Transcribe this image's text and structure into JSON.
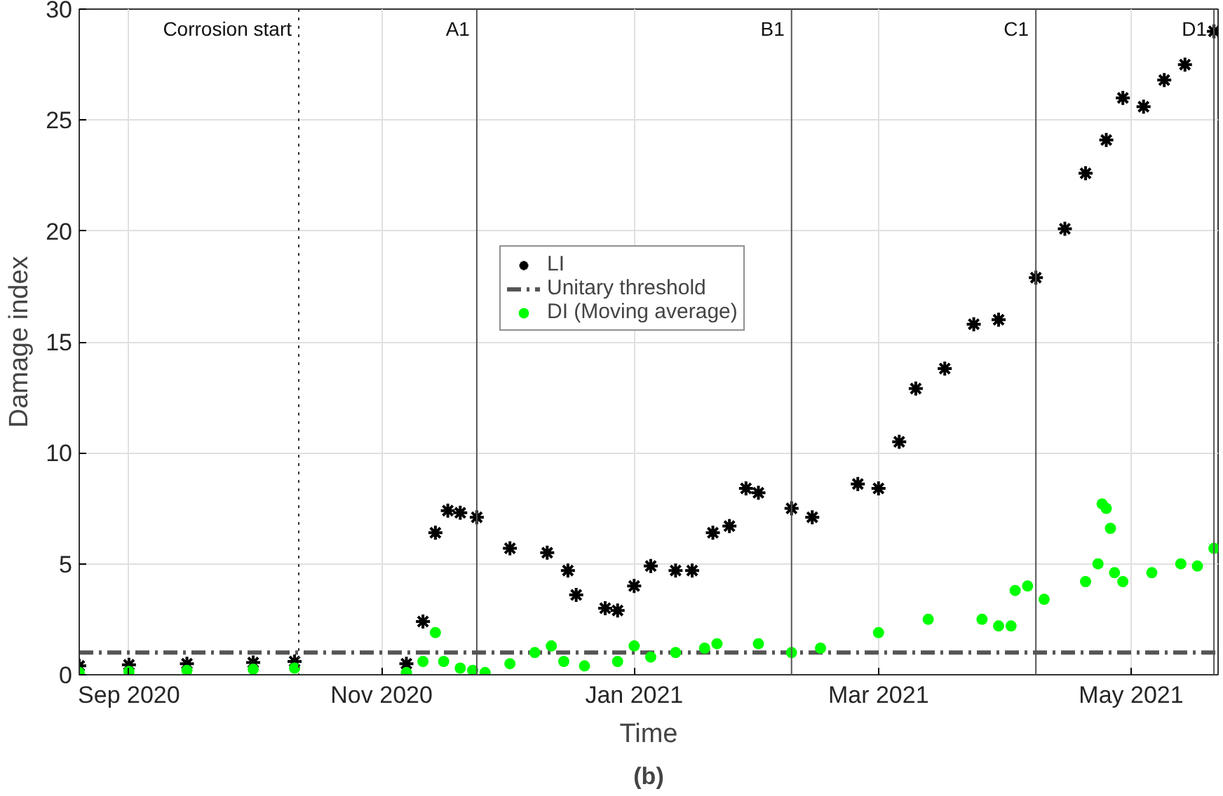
{
  "chart_data": {
    "type": "scatter",
    "xlabel": "Time",
    "ylabel": "Damage index",
    "xlim": [
      "2020-08-20",
      "2021-05-22"
    ],
    "ylim": [
      0,
      30
    ],
    "yticks": [
      0,
      5,
      10,
      15,
      20,
      25,
      30
    ],
    "xticks": [
      {
        "value": "2020-09-01",
        "label": "Sep 2020"
      },
      {
        "value": "2020-11-01",
        "label": "Nov 2020"
      },
      {
        "value": "2021-01-01",
        "label": "Jan 2021"
      },
      {
        "value": "2021-03-01",
        "label": "Mar 2021"
      },
      {
        "value": "2021-05-01",
        "label": "May 2021"
      }
    ],
    "grid": true,
    "legend": "top",
    "series": [
      {
        "name": "LI",
        "color": "#000000",
        "marker": "cross",
        "x": [
          "2020-08-20",
          "2020-09-01",
          "2020-09-15",
          "2020-10-01",
          "2020-10-11",
          "2020-10-20",
          "2020-11-07",
          "2020-11-11",
          "2020-11-14",
          "2020-11-17",
          "2020-11-20",
          "2020-11-24",
          "2020-12-02",
          "2020-12-11",
          "2020-12-16",
          "2020-12-18",
          "2020-12-25",
          "2020-12-28",
          "2021-01-01",
          "2021-01-05",
          "2021-01-11",
          "2021-01-13",
          "2021-01-15",
          "2021-01-20",
          "2021-01-22",
          "2021-01-24",
          "2021-01-28",
          "2021-01-31",
          "2021-02-08",
          "2021-02-13",
          "2021-02-24",
          "2021-03-01",
          "2021-03-06",
          "2021-03-10",
          "2021-03-17",
          "2021-03-24",
          "2021-03-30",
          "2021-04-08",
          "2021-04-15",
          "2021-04-20",
          "2021-04-25",
          "2021-04-29",
          "2021-05-04",
          "2021-05-09",
          "2021-05-14",
          "2021-05-21"
        ],
        "values": [
          0.4,
          0.45,
          0.5,
          0.55,
          0.6,
          null,
          0.5,
          2.4,
          6.4,
          7.4,
          7.3,
          7.1,
          5.7,
          5.5,
          4.7,
          3.6,
          3.0,
          2.9,
          4.0,
          4.9,
          4.7,
          null,
          4.7,
          6.4,
          null,
          6.7,
          8.4,
          8.2,
          7.5,
          7.1,
          8.6,
          8.4,
          10.5,
          12.9,
          13.8,
          15.8,
          16.0,
          17.9,
          20.1,
          22.6,
          24.1,
          26.0,
          25.6,
          26.8,
          27.5,
          29.0
        ]
      },
      {
        "name": "DI (Moving average)",
        "color": "#00ff00",
        "marker": "circle",
        "x": [
          "2020-08-20",
          "2020-09-01",
          "2020-09-15",
          "2020-10-01",
          "2020-10-11",
          "2020-10-20",
          "2020-11-07",
          "2020-11-11",
          "2020-11-14",
          "2020-11-16",
          "2020-11-20",
          "2020-11-23",
          "2020-11-26",
          "2020-12-02",
          "2020-12-08",
          "2020-12-12",
          "2020-12-15",
          "2020-12-20",
          "2020-12-28",
          "2021-01-01",
          "2021-01-05",
          "2021-01-11",
          "2021-01-18",
          "2021-01-21",
          "2021-01-26",
          "2021-01-31",
          "2021-02-08",
          "2021-02-15",
          "2021-03-01",
          "2021-03-13",
          "2021-03-26",
          "2021-03-30",
          "2021-04-02",
          "2021-04-03",
          "2021-04-06",
          "2021-04-10",
          "2021-04-20",
          "2021-04-23",
          "2021-04-24",
          "2021-04-25",
          "2021-04-26",
          "2021-04-27",
          "2021-04-29",
          "2021-05-06",
          "2021-05-13",
          "2021-05-17",
          "2021-05-21"
        ],
        "values": [
          0.1,
          0.15,
          0.2,
          0.25,
          0.3,
          null,
          0.1,
          0.6,
          1.9,
          0.6,
          0.3,
          0.2,
          0.1,
          0.5,
          1.0,
          1.3,
          0.6,
          0.4,
          0.6,
          1.3,
          0.8,
          1.0,
          1.2,
          1.4,
          null,
          1.4,
          1.0,
          1.2,
          1.9,
          2.5,
          2.5,
          2.2,
          2.2,
          3.8,
          4.0,
          3.4,
          4.2,
          5.0,
          7.7,
          7.5,
          6.6,
          4.6,
          4.2,
          4.6,
          5.0,
          4.9,
          5.7
        ]
      }
    ],
    "ref_lines": [
      {
        "axis": "y",
        "value": 1,
        "label": "Unitary threshold",
        "color": "#555555",
        "line_style": "dashdot"
      },
      {
        "axis": "x",
        "value": "2020-10-12",
        "label": "Corrosion start",
        "color": "#333333",
        "line_style": "dotted"
      },
      {
        "axis": "x",
        "value": "2020-11-24",
        "label": "A1",
        "color": "#555555",
        "line_style": "solid"
      },
      {
        "axis": "x",
        "value": "2021-02-08",
        "label": "B1",
        "color": "#555555",
        "line_style": "solid"
      },
      {
        "axis": "x",
        "value": "2021-04-08",
        "label": "C1",
        "color": "#555555",
        "line_style": "solid"
      },
      {
        "axis": "x",
        "value": "2021-05-21",
        "label": "D1",
        "color": "#555555",
        "line_style": "solid"
      }
    ],
    "annotations": [
      "(b)"
    ]
  }
}
